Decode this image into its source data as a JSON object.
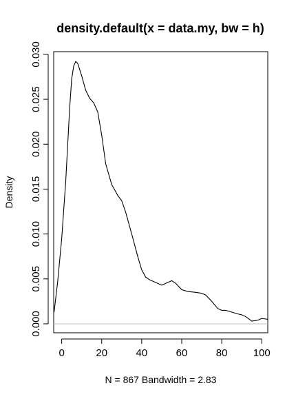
{
  "chart_data": {
    "type": "line",
    "title": "density.default(x = data.my, bw = h)",
    "xlabel": "N = 867   Bandwidth = 2.83",
    "ylabel": "Density",
    "xlim": [
      -4,
      103
    ],
    "ylim": [
      -0.001,
      0.0303
    ],
    "xticks": [
      0,
      20,
      40,
      60,
      80,
      100
    ],
    "xtick_labels": [
      "0",
      "20",
      "40",
      "60",
      "80",
      "100"
    ],
    "yticks": [
      0.0,
      0.005,
      0.01,
      0.015,
      0.02,
      0.025,
      0.03
    ],
    "ytick_labels": [
      "0.000",
      "0.005",
      "0.010",
      "0.015",
      "0.020",
      "0.025",
      "0.030"
    ],
    "zero_line_color": "#bebebe",
    "line_color": "#000000",
    "grid": false,
    "series": [
      {
        "x": [
          -3.8,
          -2,
          0,
          2,
          4,
          5,
          6,
          7,
          8,
          10,
          12,
          14,
          16,
          18,
          20,
          22,
          25,
          28,
          30,
          32,
          35,
          38,
          40,
          42,
          44,
          47,
          50,
          52,
          55,
          57,
          60,
          63,
          67,
          70,
          72,
          75,
          78,
          80,
          82,
          85,
          88,
          90,
          92,
          95,
          98,
          100,
          103
        ],
        "y": [
          0.0013,
          0.0047,
          0.0095,
          0.0158,
          0.0241,
          0.0273,
          0.0287,
          0.0292,
          0.029,
          0.0276,
          0.026,
          0.0251,
          0.0246,
          0.0236,
          0.021,
          0.0178,
          0.0155,
          0.0143,
          0.0137,
          0.0124,
          0.01,
          0.0075,
          0.006,
          0.0052,
          0.0049,
          0.0046,
          0.0043,
          0.0045,
          0.0048,
          0.0045,
          0.0038,
          0.0036,
          0.0035,
          0.0034,
          0.0032,
          0.0025,
          0.0017,
          0.0015,
          0.0015,
          0.0013,
          0.0011,
          0.001,
          0.0008,
          0.0003,
          0.0004,
          0.0006,
          0.0005
        ]
      }
    ]
  }
}
